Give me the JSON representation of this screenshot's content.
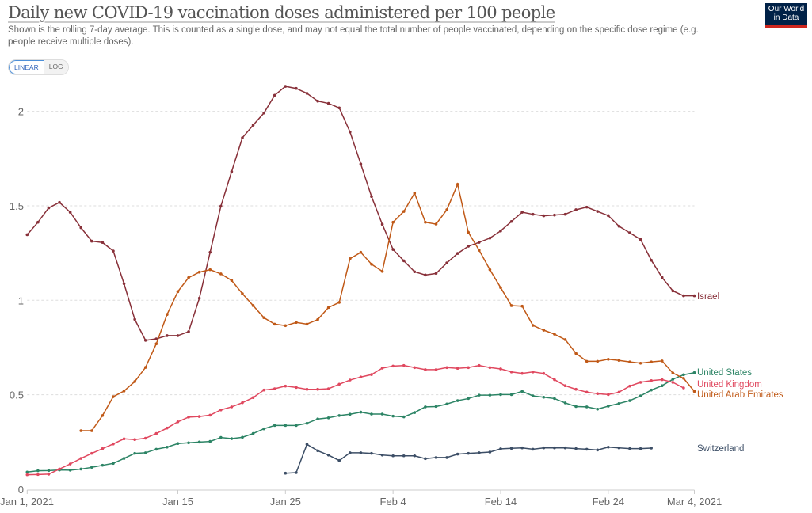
{
  "header": {
    "title": "Daily new COVID-19 vaccination doses administered per 100 people",
    "subtitle": "Shown is the rolling 7-day average. This is counted as a single dose, and may not equal the total number of people vaccinated, depending on the specific dose regime (e.g. people receive multiple doses).",
    "logo": "Our World in Data",
    "scale_options": [
      "LINEAR",
      "LOG"
    ],
    "scale_selected": "LINEAR"
  },
  "chart_data": {
    "type": "line",
    "title": "Daily new COVID-19 vaccination doses administered per 100 people",
    "x_range": [
      "2021-01-01",
      "2021-03-04"
    ],
    "x_ticks": [
      {
        "date": "2021-01-01",
        "label": "Jan 1, 2021"
      },
      {
        "date": "2021-01-15",
        "label": "Jan 15"
      },
      {
        "date": "2021-01-25",
        "label": "Jan 25"
      },
      {
        "date": "2021-02-04",
        "label": "Feb 4"
      },
      {
        "date": "2021-02-14",
        "label": "Feb 14"
      },
      {
        "date": "2021-02-24",
        "label": "Feb 24"
      },
      {
        "date": "2021-03-04",
        "label": "Mar 4, 2021"
      }
    ],
    "ylim": [
      0,
      2.2
    ],
    "y_ticks": [
      {
        "value": 0,
        "label": "0"
      },
      {
        "value": 0.5,
        "label": "0.5"
      },
      {
        "value": 1,
        "label": "1"
      },
      {
        "value": 1.5,
        "label": "1.5"
      },
      {
        "value": 2,
        "label": "2"
      }
    ],
    "grid": "horizontal dotted",
    "legend": "right end labels",
    "series": [
      {
        "name": "Israel",
        "color": "#883039",
        "start": "2021-01-01",
        "values": [
          1.347,
          1.413,
          1.489,
          1.518,
          1.466,
          1.384,
          1.313,
          1.306,
          1.261,
          1.088,
          0.899,
          0.788,
          0.796,
          0.813,
          0.813,
          0.834,
          1.011,
          1.254,
          1.498,
          1.681,
          1.86,
          1.927,
          1.991,
          2.085,
          2.132,
          2.121,
          2.095,
          2.054,
          2.042,
          2.018,
          1.891,
          1.721,
          1.549,
          1.402,
          1.269,
          1.209,
          1.151,
          1.134,
          1.142,
          1.198,
          1.248,
          1.286,
          1.307,
          1.329,
          1.367,
          1.417,
          1.466,
          1.455,
          1.447,
          1.451,
          1.455,
          1.479,
          1.493,
          1.47,
          1.448,
          1.392,
          1.357,
          1.322,
          1.212,
          1.121,
          1.05,
          1.024,
          1.024
        ]
      },
      {
        "name": "United States",
        "color": "#2c8465",
        "start": "2021-01-01",
        "values": [
          0.091,
          0.098,
          0.099,
          0.102,
          0.101,
          0.107,
          0.116,
          0.127,
          0.137,
          0.163,
          0.19,
          0.193,
          0.212,
          0.223,
          0.242,
          0.246,
          0.25,
          0.253,
          0.274,
          0.268,
          0.275,
          0.295,
          0.32,
          0.338,
          0.338,
          0.338,
          0.349,
          0.372,
          0.378,
          0.39,
          0.397,
          0.408,
          0.398,
          0.398,
          0.387,
          0.383,
          0.406,
          0.436,
          0.438,
          0.451,
          0.469,
          0.48,
          0.498,
          0.498,
          0.501,
          0.501,
          0.518,
          0.494,
          0.487,
          0.48,
          0.457,
          0.438,
          0.436,
          0.424,
          0.44,
          0.454,
          0.469,
          0.494,
          0.525,
          0.548,
          0.582,
          0.606,
          0.617
        ]
      },
      {
        "name": "United Kingdom",
        "color": "#e0485f",
        "start": "2021-01-01",
        "values": [
          0.077,
          0.078,
          0.08,
          0.107,
          0.134,
          0.163,
          0.19,
          0.215,
          0.24,
          0.267,
          0.263,
          0.27,
          0.295,
          0.324,
          0.357,
          0.382,
          0.385,
          0.392,
          0.42,
          0.436,
          0.458,
          0.485,
          0.525,
          0.532,
          0.546,
          0.539,
          0.529,
          0.529,
          0.532,
          0.556,
          0.578,
          0.594,
          0.607,
          0.641,
          0.652,
          0.655,
          0.644,
          0.633,
          0.633,
          0.644,
          0.64,
          0.644,
          0.655,
          0.644,
          0.637,
          0.621,
          0.613,
          0.621,
          0.613,
          0.58,
          0.548,
          0.529,
          0.514,
          0.506,
          0.501,
          0.514,
          0.546,
          0.566,
          0.575,
          0.58,
          0.566,
          0.536
        ]
      },
      {
        "name": "United Arab Emirates",
        "color": "#c05917",
        "start": "2021-01-06",
        "values": [
          0.31,
          0.31,
          0.39,
          0.49,
          0.52,
          0.57,
          0.645,
          0.77,
          0.925,
          1.046,
          1.12,
          1.149,
          1.162,
          1.14,
          1.105,
          1.035,
          0.972,
          0.908,
          0.874,
          0.866,
          0.883,
          0.874,
          0.898,
          0.962,
          0.989,
          1.22,
          1.254,
          1.191,
          1.153,
          1.413,
          1.47,
          1.567,
          1.413,
          1.403,
          1.479,
          1.614,
          1.359,
          1.265,
          1.162,
          1.067,
          0.972,
          0.969,
          0.867,
          0.842,
          0.821,
          0.792,
          0.719,
          0.677,
          0.677,
          0.688,
          0.682,
          0.674,
          0.667,
          0.674,
          0.679,
          0.615,
          0.587,
          0.518
        ]
      },
      {
        "name": "Switzerland",
        "color": "#3c4e66",
        "start": "2021-01-25",
        "values": [
          0.085,
          0.088,
          0.238,
          0.204,
          0.181,
          0.152,
          0.193,
          0.193,
          0.19,
          0.181,
          0.177,
          0.177,
          0.177,
          0.162,
          0.168,
          0.168,
          0.186,
          0.19,
          0.193,
          0.197,
          0.214,
          0.217,
          0.219,
          0.212,
          0.219,
          0.219,
          0.219,
          0.215,
          0.212,
          0.208,
          0.223,
          0.219,
          0.215,
          0.215,
          0.218
        ]
      }
    ]
  }
}
